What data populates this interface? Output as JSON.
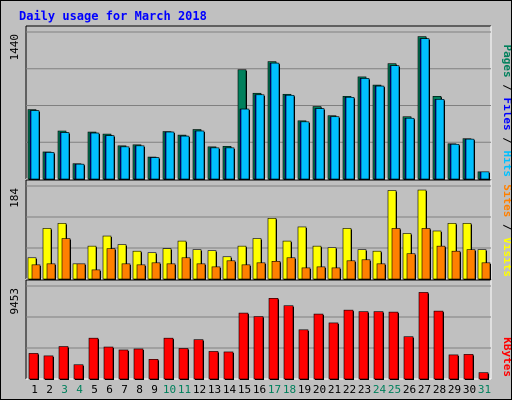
{
  "chart_data": [
    {
      "type": "bar",
      "panel": "pages-files-hits",
      "title": "Daily usage for March 2018",
      "categories": [
        "1",
        "2",
        "3",
        "4",
        "5",
        "6",
        "7",
        "8",
        "9",
        "10",
        "11",
        "12",
        "13",
        "14",
        "15",
        "16",
        "17",
        "18",
        "19",
        "20",
        "21",
        "22",
        "23",
        "24",
        "25",
        "26",
        "27",
        "28",
        "29",
        "30",
        "31"
      ],
      "ymax_label": "1440",
      "ylim": [
        0,
        1440
      ],
      "series": [
        {
          "name": "Pages",
          "color": "#00805c",
          "values": [
            680,
            265,
            470,
            150,
            460,
            440,
            325,
            335,
            215,
            465,
            430,
            485,
            315,
            320,
            1070,
            840,
            1150,
            830,
            570,
            710,
            620,
            810,
            1000,
            920,
            1130,
            610,
            1395,
            810,
            345,
            395,
            70
          ]
        },
        {
          "name": "Files",
          "color": "#0000ff",
          "values": [
            670,
            260,
            455,
            145,
            450,
            425,
            315,
            325,
            210,
            460,
            420,
            470,
            305,
            305,
            685,
            825,
            1135,
            820,
            560,
            690,
            610,
            800,
            985,
            910,
            1110,
            595,
            1375,
            780,
            340,
            390,
            70
          ]
        },
        {
          "name": "Hits",
          "color": "#00c0ff",
          "values": [
            670,
            260,
            455,
            145,
            450,
            425,
            315,
            325,
            210,
            460,
            420,
            470,
            305,
            305,
            685,
            825,
            1135,
            820,
            560,
            690,
            610,
            800,
            985,
            910,
            1110,
            595,
            1375,
            780,
            340,
            390,
            70
          ]
        }
      ]
    },
    {
      "type": "bar",
      "panel": "sites-visits",
      "categories": [
        "1",
        "2",
        "3",
        "4",
        "5",
        "6",
        "7",
        "8",
        "9",
        "10",
        "11",
        "12",
        "13",
        "14",
        "15",
        "16",
        "17",
        "18",
        "19",
        "20",
        "21",
        "22",
        "23",
        "24",
        "25",
        "26",
        "27",
        "28",
        "29",
        "30",
        "31"
      ],
      "ymax_label": "184",
      "ylim": [
        0,
        184
      ],
      "series": [
        {
          "name": "Sites",
          "color": "#ff8000",
          "values": [
            28,
            30,
            80,
            30,
            18,
            60,
            30,
            28,
            32,
            30,
            42,
            30,
            24,
            36,
            28,
            32,
            35,
            42,
            22,
            24,
            22,
            36,
            38,
            30,
            100,
            50,
            100,
            65,
            55,
            58,
            32
          ]
        },
        {
          "name": "Visits",
          "color": "#ffff00",
          "values": [
            42,
            100,
            110,
            30,
            65,
            85,
            68,
            55,
            52,
            60,
            75,
            58,
            56,
            44,
            65,
            80,
            120,
            75,
            103,
            65,
            62,
            100,
            58,
            55,
            175,
            90,
            176,
            95,
            110,
            110,
            58
          ]
        }
      ]
    },
    {
      "type": "bar",
      "panel": "kbytes",
      "categories": [
        "1",
        "2",
        "3",
        "4",
        "5",
        "6",
        "7",
        "8",
        "9",
        "10",
        "11",
        "12",
        "13",
        "14",
        "15",
        "16",
        "17",
        "18",
        "19",
        "20",
        "21",
        "22",
        "23",
        "24",
        "25",
        "26",
        "27",
        "28",
        "29",
        "30",
        "31"
      ],
      "ymax_label": "9453",
      "ylim": [
        0,
        9453
      ],
      "series": [
        {
          "name": "KBytes",
          "color": "#ff0000",
          "values": [
            2600,
            2350,
            3300,
            1450,
            4150,
            3250,
            2950,
            3050,
            2000,
            4150,
            3100,
            4000,
            2800,
            2750,
            6700,
            6350,
            8200,
            7450,
            5000,
            6600,
            5700,
            7000,
            6850,
            6850,
            6800,
            4300,
            8800,
            6900,
            2450,
            2500,
            650
          ]
        }
      ]
    }
  ],
  "legend_top": [
    {
      "label": "Pages",
      "color": "#00805c"
    },
    {
      "label": "Files",
      "color": "#0000ff"
    },
    {
      "label": "Hits",
      "color": "#00c0ff"
    }
  ],
  "legend_mid": [
    {
      "label": "Sites",
      "color": "#ff8000"
    },
    {
      "label": "Visits",
      "color": "#ffff00"
    }
  ],
  "legend_bot": [
    {
      "label": "KBytes",
      "color": "#ff0000"
    }
  ],
  "separator": " / ",
  "weekend_days": [
    "3",
    "4",
    "10",
    "11",
    "17",
    "18",
    "24",
    "25",
    "31"
  ],
  "colors": {
    "weekend": "#00805c",
    "weekday": "#000000",
    "title": "#0000ff",
    "panel_bg": "#c0c0c0"
  }
}
